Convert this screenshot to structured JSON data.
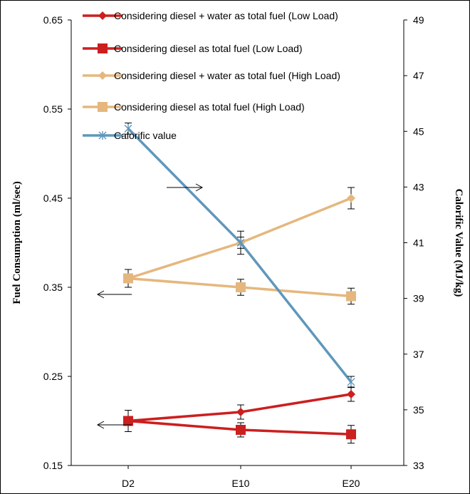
{
  "chart_data": {
    "type": "line",
    "categories": [
      "D2",
      "E10",
      "E20"
    ],
    "left_axis": {
      "label": "Fuel Consumption  (ml/sec)",
      "range": [
        0.15,
        0.65
      ],
      "ticks": [
        "0.15",
        "0.25",
        "0.35",
        "0.45",
        "0.55",
        "0.65"
      ]
    },
    "right_axis": {
      "label": "Calorific  Value  (MJ/kg)",
      "range": [
        33,
        49
      ],
      "ticks": [
        "33",
        "35",
        "37",
        "39",
        "41",
        "43",
        "45",
        "47",
        "49"
      ]
    },
    "legend_position": "top-left",
    "series": [
      {
        "name": "Considering diesel + water as total fuel (Low Load)",
        "axis": "left",
        "marker": "diamond",
        "color": "#cc1f1f",
        "values": [
          0.2,
          0.21,
          0.23
        ],
        "errors": [
          0.012,
          0.008,
          0.008
        ]
      },
      {
        "name": "Considering diesel as total fuel (Low Load)",
        "axis": "left",
        "marker": "square",
        "color": "#cc1f1f",
        "values": [
          0.2,
          0.19,
          0.185
        ],
        "errors": [
          0.012,
          0.008,
          0.01
        ]
      },
      {
        "name": "Considering diesel + water as total fuel (High Load)",
        "axis": "left",
        "marker": "diamond",
        "color": "#e5b77e",
        "values": [
          0.36,
          0.4,
          0.45
        ],
        "errors": [
          0.01,
          0.013,
          0.012
        ]
      },
      {
        "name": "Considering diesel as total fuel (High Load)",
        "axis": "left",
        "marker": "square",
        "color": "#e5b77e",
        "values": [
          0.36,
          0.35,
          0.34
        ],
        "errors": [
          0.01,
          0.009,
          0.009
        ]
      },
      {
        "name": "Calorific value",
        "axis": "right",
        "marker": "star",
        "color": "#5f97bb",
        "values": [
          45.1,
          41.0,
          36.0
        ],
        "errors": [
          0.2,
          0.2,
          0.2
        ]
      }
    ]
  }
}
